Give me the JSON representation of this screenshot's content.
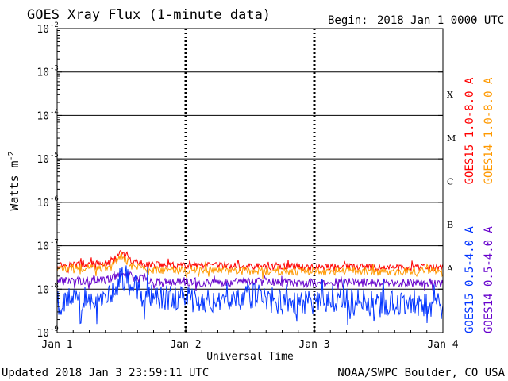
{
  "chart_data": {
    "type": "line",
    "title": "GOES Xray Flux (1-minute data)",
    "begin_label": "Begin:",
    "begin_value": "2018 Jan 1 0000 UTC",
    "xlabel": "Universal Time",
    "ylabel": "Watts m",
    "ylabel_exponent": "-2",
    "y_scale": "log",
    "ylim": [
      1e-09,
      0.01
    ],
    "y_ticks": [
      {
        "mantissa": "10",
        "exponent": "-2",
        "value": 0.01
      },
      {
        "mantissa": "10",
        "exponent": "-3",
        "value": 0.001
      },
      {
        "mantissa": "10",
        "exponent": "-4",
        "value": 0.0001
      },
      {
        "mantissa": "10",
        "exponent": "-5",
        "value": 1e-05
      },
      {
        "mantissa": "10",
        "exponent": "-6",
        "value": 1e-06
      },
      {
        "mantissa": "10",
        "exponent": "-7",
        "value": 1e-07
      },
      {
        "mantissa": "10",
        "exponent": "-8",
        "value": 1e-08
      },
      {
        "mantissa": "10",
        "exponent": "-9",
        "value": 1e-09
      }
    ],
    "xlim": [
      "2018-01-01 00:00",
      "2018-01-04 00:00"
    ],
    "x_ticks": [
      {
        "label": "Jan 1",
        "date": "2018-01-01 00:00"
      },
      {
        "label": "Jan 2",
        "date": "2018-01-02 00:00"
      },
      {
        "label": "Jan 3",
        "date": "2018-01-03 00:00"
      },
      {
        "label": "Jan 4",
        "date": "2018-01-04 00:00"
      }
    ],
    "flare_classes": [
      {
        "label": "X",
        "value": 0.0001
      },
      {
        "label": "M",
        "value": 1e-05
      },
      {
        "label": "C",
        "value": 1e-06
      },
      {
        "label": "B",
        "value": 1e-07
      },
      {
        "label": "A",
        "value": 1e-08
      }
    ],
    "x": [
      "2018-01-01 00:00",
      "2018-01-01 06:00",
      "2018-01-01 10:00",
      "2018-01-01 12:00",
      "2018-01-01 14:00",
      "2018-01-01 18:00",
      "2018-01-02 00:00",
      "2018-01-02 06:00",
      "2018-01-02 12:00",
      "2018-01-02 18:00",
      "2018-01-03 00:00",
      "2018-01-03 06:00",
      "2018-01-03 12:00",
      "2018-01-03 18:00",
      "2018-01-04 00:00"
    ],
    "series": [
      {
        "name": "GOES15 1.0-8.0 A",
        "color": "#ff0000",
        "values": [
          3.6e-08,
          3.7e-08,
          4e-08,
          6.8e-08,
          4.2e-08,
          3.6e-08,
          3.4e-08,
          3.5e-08,
          3.3e-08,
          3.4e-08,
          3.2e-08,
          3.3e-08,
          3.1e-08,
          3.2e-08,
          3.1e-08
        ]
      },
      {
        "name": "GOES14 1.0-8.0 A",
        "color": "#ff9900",
        "values": [
          2.9e-08,
          3.1e-08,
          3.2e-08,
          5.8e-08,
          3.4e-08,
          2.8e-08,
          2.7e-08,
          2.8e-08,
          2.6e-08,
          2.6e-08,
          2.5e-08,
          2.6e-08,
          2.5e-08,
          2.6e-08,
          2.5e-08
        ]
      },
      {
        "name": "GOES14 0.5-4.0 A",
        "color": "#6600cc",
        "values": [
          1.5e-08,
          1.6e-08,
          1.7e-08,
          2.6e-08,
          1.9e-08,
          1.5e-08,
          1.5e-08,
          1.4e-08,
          1.5e-08,
          1.4e-08,
          1.4e-08,
          1.5e-08,
          1.4e-08,
          1.4e-08,
          1.4e-08
        ]
      },
      {
        "name": "GOES15 0.5-4.0 A",
        "color": "#0033ff",
        "values": [
          5e-09,
          6e-09,
          8e-09,
          2e-08,
          1.2e-08,
          7e-09,
          6e-09,
          5.5e-09,
          7e-09,
          5e-09,
          5e-09,
          5.5e-09,
          4.5e-09,
          5e-09,
          4e-09
        ]
      }
    ],
    "grid": true,
    "legend": "right, vertical"
  },
  "footer": {
    "updated": "Updated 2018 Jan  3 23:59:11 UTC",
    "source": "NOAA/SWPC Boulder, CO USA"
  }
}
